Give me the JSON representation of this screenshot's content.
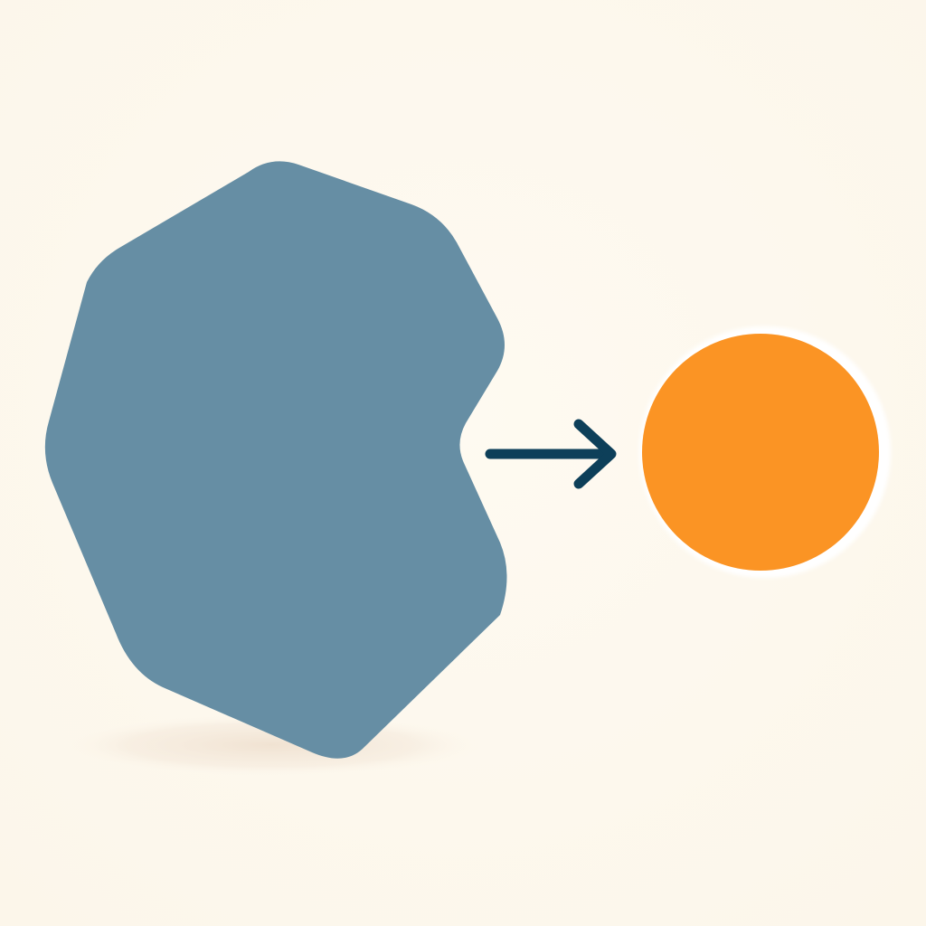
{
  "colors": {
    "background": "#FDF8ED",
    "shadow": "#F1E3D3",
    "source_shape": "#668EA4",
    "arrow": "#0D3F59",
    "target_circle": "#FB9424",
    "target_glow": "#FFFFFF"
  },
  "elements": {
    "source": {
      "shape": "rounded-polygon-with-notch"
    },
    "arrow": {
      "icon": "arrow-right-icon",
      "direction": "right"
    },
    "target": {
      "shape": "circle"
    }
  }
}
